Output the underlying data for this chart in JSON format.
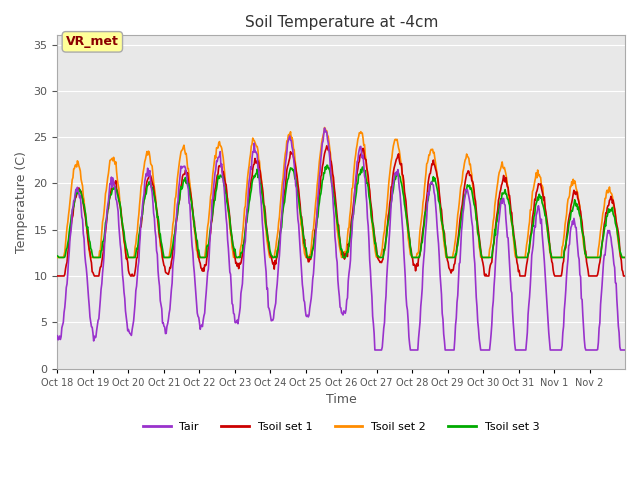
{
  "title": "Soil Temperature at -4cm",
  "xlabel": "Time",
  "ylabel": "Temperature (C)",
  "ylim": [
    0,
    36
  ],
  "yticks": [
    0,
    5,
    10,
    15,
    20,
    25,
    30,
    35
  ],
  "bg_color": "#e8e8e8",
  "fig_color": "#ffffff",
  "annotation_text": "VR_met",
  "annotation_color": "#8b0000",
  "annotation_bg": "#ffff99",
  "legend_entries": [
    "Tair",
    "Tsoil set 1",
    "Tsoil set 2",
    "Tsoil set 3"
  ],
  "line_colors": [
    "#9932cc",
    "#cc0000",
    "#ff8c00",
    "#00aa00"
  ],
  "xtick_labels": [
    "Oct 18",
    "Oct 19",
    "Oct 20",
    "Oct 21",
    "Oct 22",
    "Oct 23",
    "Oct 24",
    "Oct 25",
    "Oct 26",
    "Oct 27",
    "Oct 28",
    "Oct 29",
    "Oct 30",
    "Oct 31",
    "Nov 1",
    "Nov 2"
  ],
  "n_days": 16,
  "points_per_day": 48
}
